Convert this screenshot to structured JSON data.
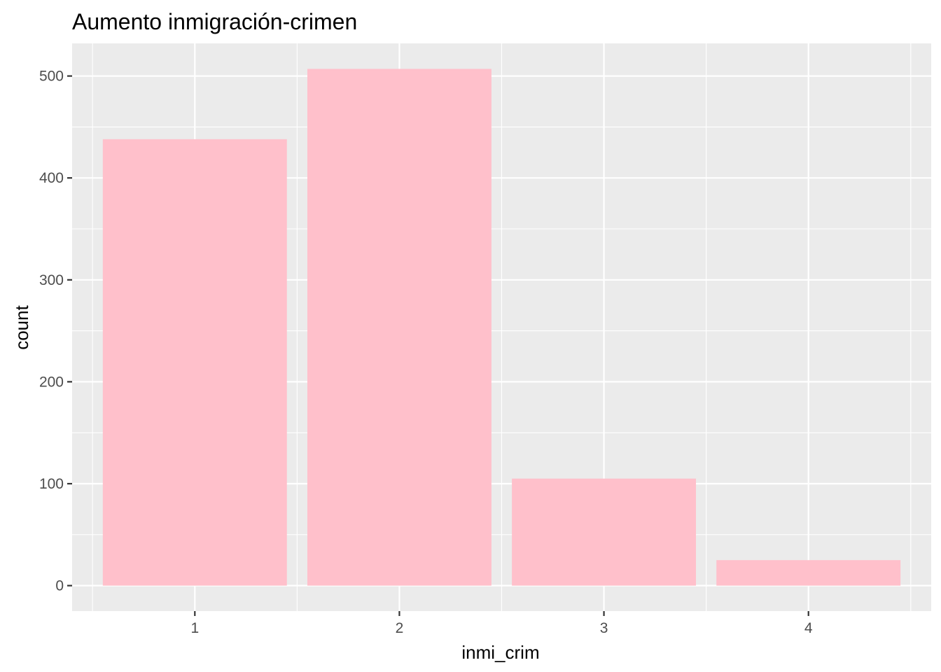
{
  "chart_data": {
    "type": "bar",
    "title": "Aumento inmigración-crimen",
    "xlabel": "inmi_crim",
    "ylabel": "count",
    "categories": [
      "1",
      "2",
      "3",
      "4"
    ],
    "values": [
      438,
      507,
      105,
      25
    ],
    "ylim": [
      -25,
      532
    ],
    "yticks": [
      0,
      100,
      200,
      300,
      400,
      500
    ],
    "ytick_labels": [
      "0",
      "100",
      "200",
      "300",
      "400",
      "500"
    ],
    "grid": true,
    "colors": {
      "bar": "#FFC0CB",
      "panel": "#EBEBEB",
      "grid": "#FFFFFF",
      "tick_text": "#4D4D4D",
      "tick_mark": "#333333"
    }
  }
}
